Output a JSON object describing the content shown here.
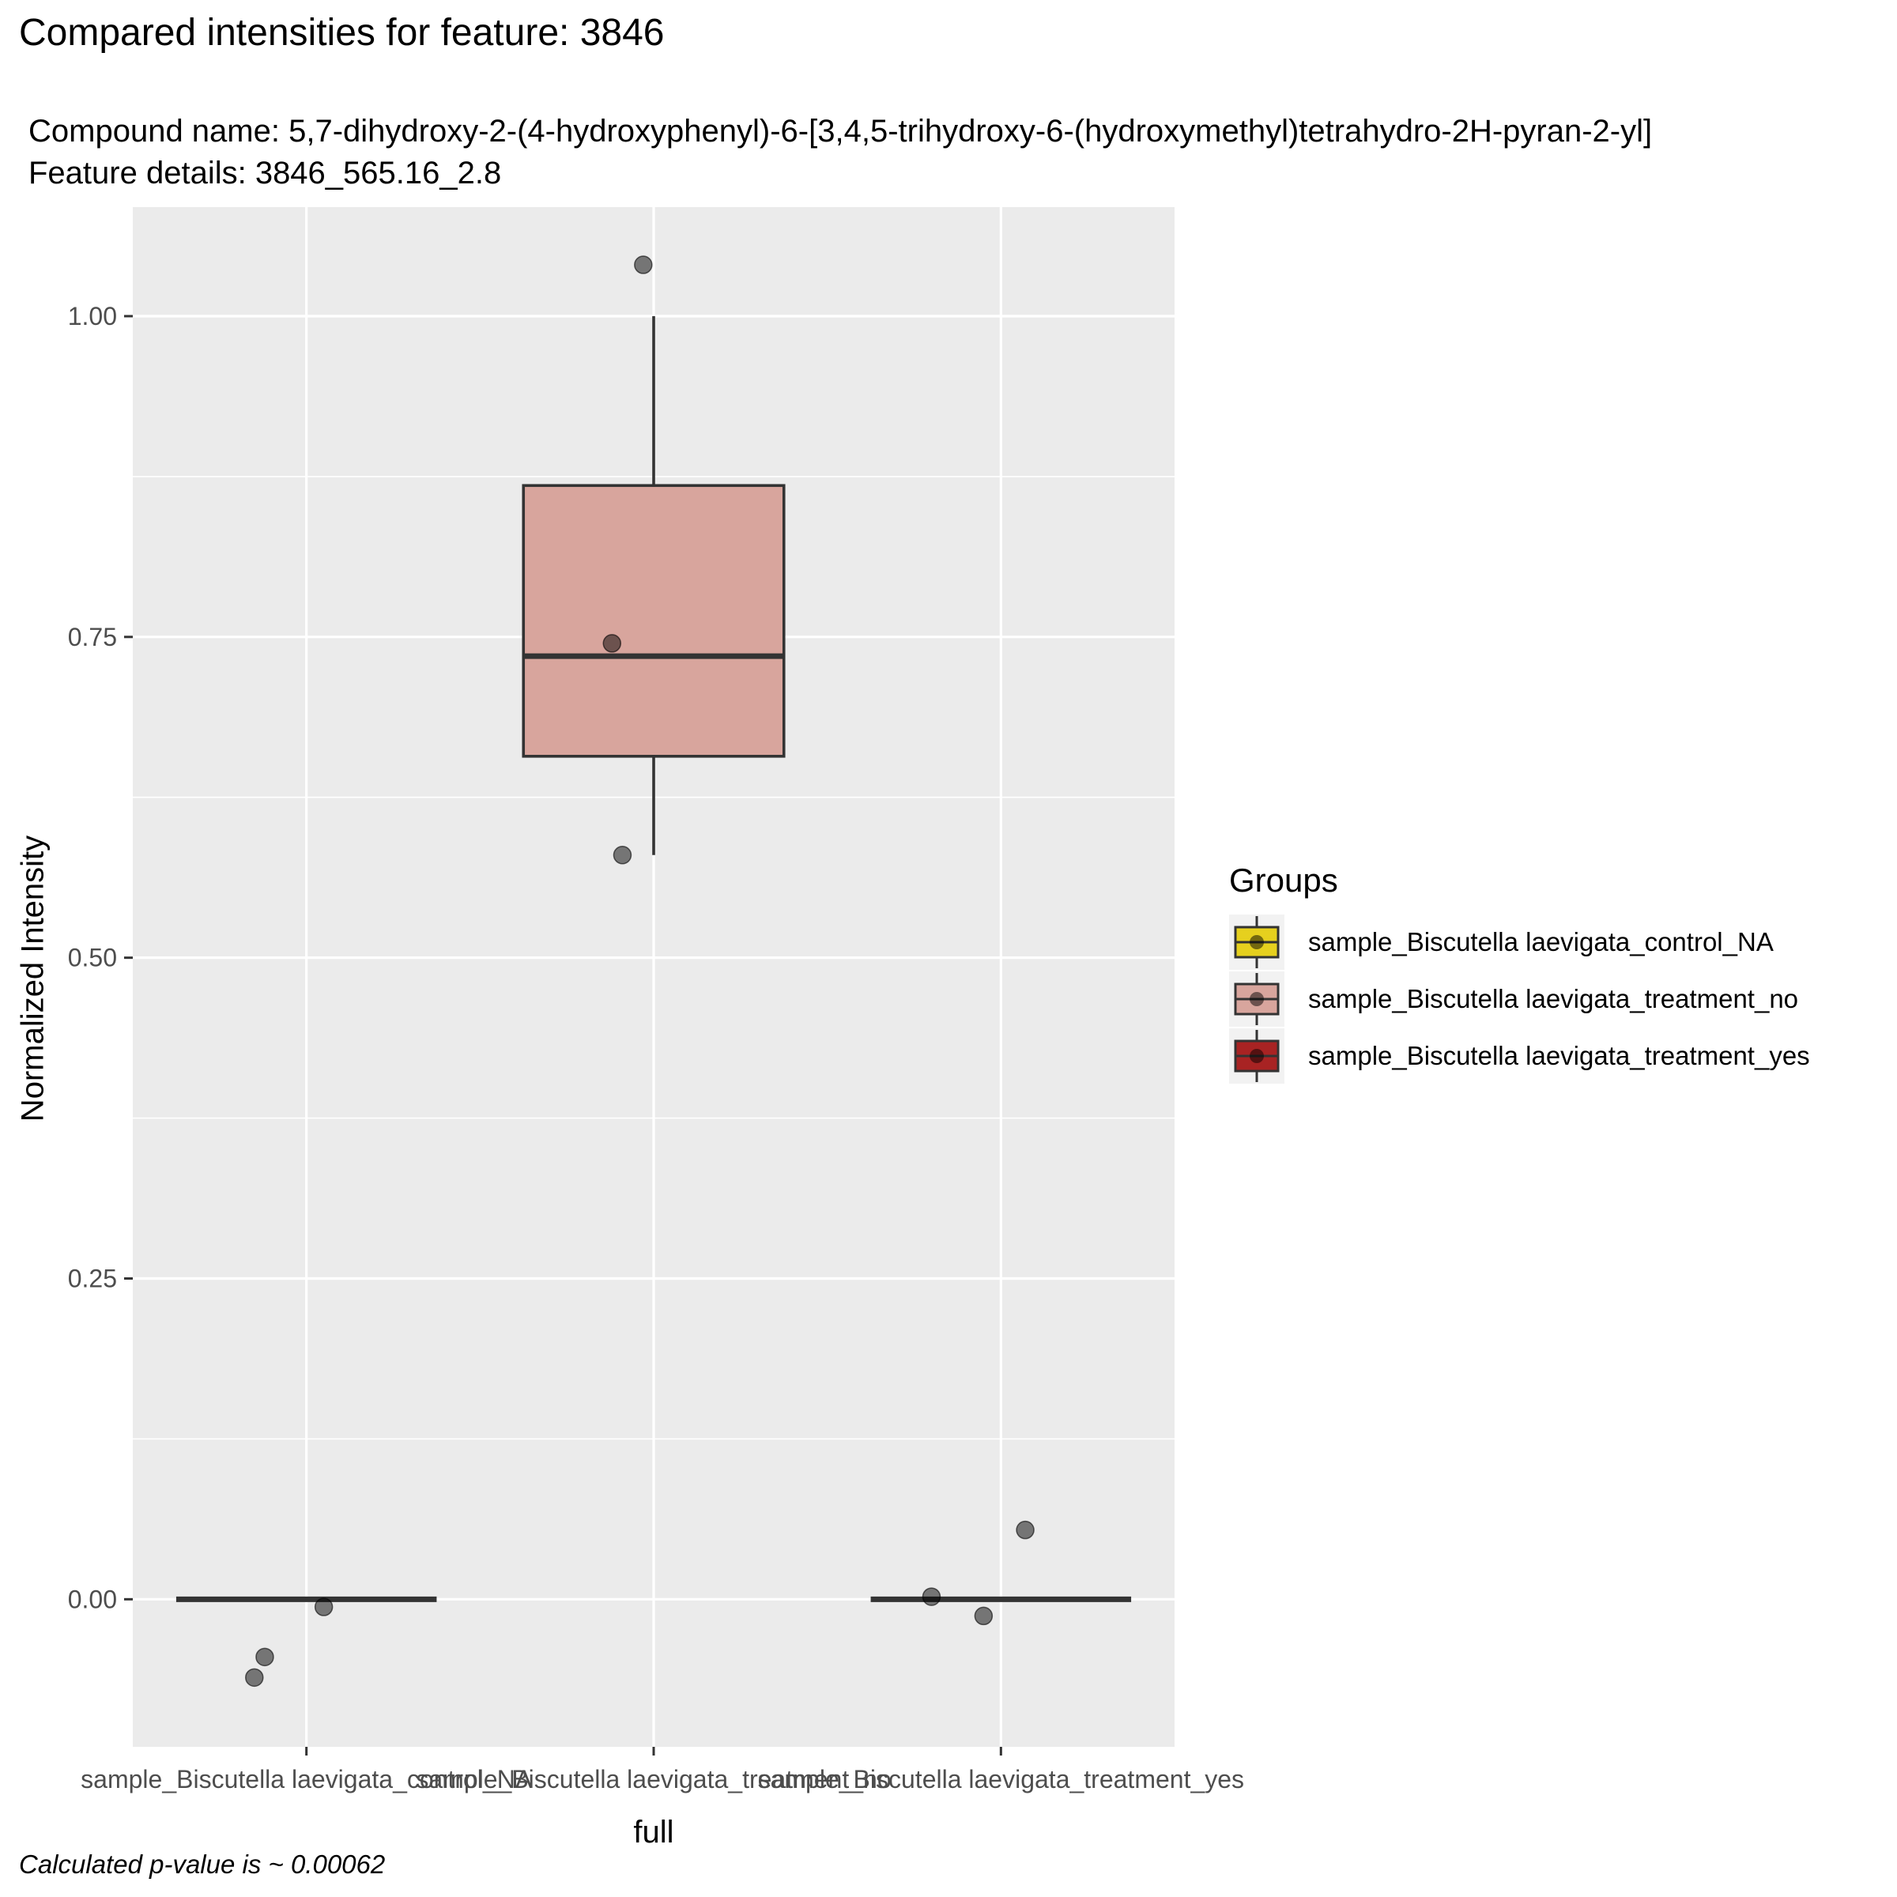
{
  "title": "Compared intensities for feature: 3846",
  "subtitle_line1": "Compound name:  5,7-dihydroxy-2-(4-hydroxyphenyl)-6-[3,4,5-trihydroxy-6-(hydroxymethyl)tetrahydro-2H-pyran-2-yl]",
  "subtitle_line2": "Feature details:  3846_565.16_2.8",
  "caption": "Calculated p-value is ~  0.00062",
  "chart_data": {
    "type": "box",
    "xlabel": "full",
    "ylabel": "Normalized Intensity",
    "ylim": [
      -0.115,
      1.085
    ],
    "yticks": [
      0.0,
      0.25,
      0.5,
      0.75,
      1.0
    ],
    "ytick_labels": [
      "0.00",
      "0.25",
      "0.50",
      "0.75",
      "1.00"
    ],
    "legend_title": "Groups",
    "legend_position": "right",
    "grid": true,
    "categories": [
      "sample_Biscutella laevigata_control_NA",
      "sample_Biscutella laevigata_treatment_no",
      "sample_Biscutella laevigata_treatment_yes"
    ],
    "series": [
      {
        "name": "sample_Biscutella laevigata_control_NA",
        "color": "#E6D01E",
        "box": {
          "min": 0.0,
          "q1": 0.0,
          "median": 0.0,
          "q3": 0.0,
          "max": 0.0
        },
        "points": [
          -0.006,
          -0.045,
          -0.061
        ]
      },
      {
        "name": "sample_Biscutella laevigata_treatment_no",
        "color": "#D8A59D",
        "box": {
          "min": 0.58,
          "q1": 0.657,
          "median": 0.735,
          "q3": 0.868,
          "max": 1.0
        },
        "points": [
          1.04,
          0.745,
          0.58
        ]
      },
      {
        "name": "sample_Biscutella laevigata_treatment_yes",
        "color": "#A82323",
        "box": {
          "min": 0.0,
          "q1": 0.0,
          "median": 0.0,
          "q3": 0.0,
          "max": 0.0
        },
        "points": [
          0.054,
          0.002,
          -0.013
        ]
      }
    ]
  }
}
